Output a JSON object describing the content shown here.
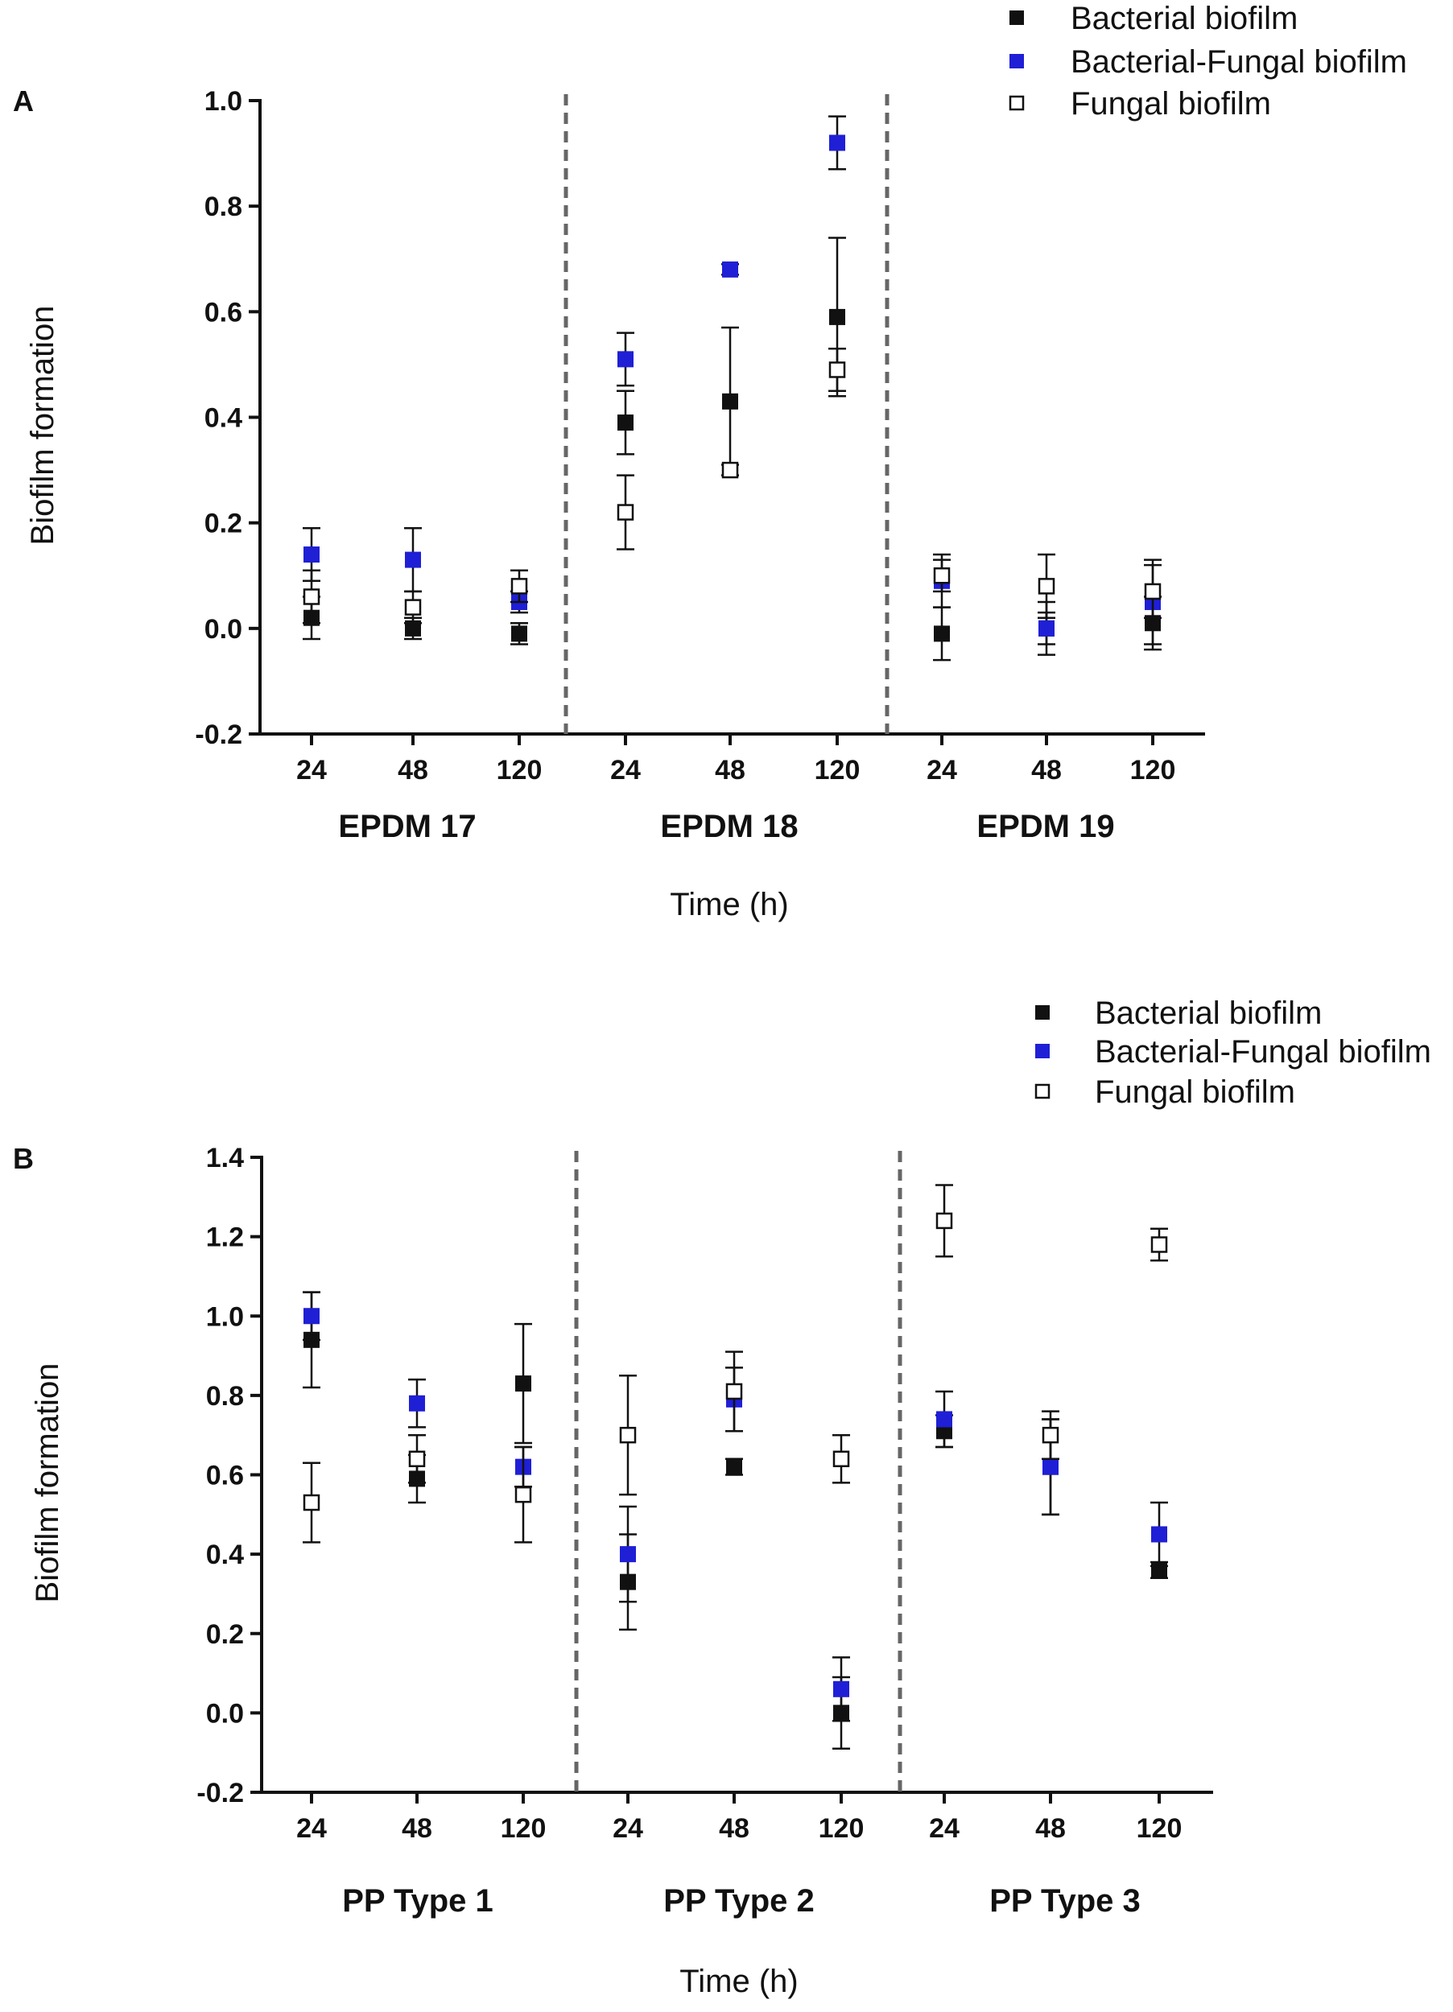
{
  "colors": {
    "bacterial": "#111111",
    "bacterial_fungal": "#1f1fd6",
    "fungal_fill": "#ffffff",
    "divider": "#666666"
  },
  "chart_data": [
    {
      "type": "scatter",
      "panel_label": "A",
      "xlabel": "Time (h)",
      "ylabel": "Biofilm formation",
      "ylim": [
        -0.2,
        1.0
      ],
      "yticks": [
        "1.0",
        "0.8",
        "0.6",
        "0.4",
        "0.2",
        "0.0",
        "-0.2"
      ],
      "ytick_values": [
        1.0,
        0.8,
        0.6,
        0.4,
        0.2,
        0.0,
        -0.2
      ],
      "grid": false,
      "legend_position": "top-right",
      "groups": [
        {
          "name": "EPDM 17",
          "times": [
            "24",
            "48",
            "120"
          ]
        },
        {
          "name": "EPDM 18",
          "times": [
            "24",
            "48",
            "120"
          ]
        },
        {
          "name": "EPDM 19",
          "times": [
            "24",
            "48",
            "120"
          ]
        }
      ],
      "series": [
        {
          "name": "Bacterial biofilm",
          "marker": "filled-square",
          "values": [
            0.02,
            0.0,
            -0.01,
            0.39,
            0.43,
            0.59,
            -0.01,
            0.0,
            0.01
          ],
          "errors": [
            0.04,
            0.02,
            0.02,
            0.06,
            0.14,
            0.15,
            0.05,
            0.05,
            0.05
          ]
        },
        {
          "name": "Bacterial-Fungal biofilm",
          "marker": "blue-square",
          "values": [
            0.14,
            0.13,
            0.05,
            0.51,
            0.68,
            0.92,
            0.09,
            0.0,
            0.05
          ],
          "errors": [
            0.05,
            0.06,
            0.02,
            0.05,
            0.01,
            0.05,
            0.05,
            0.03,
            0.08
          ]
        },
        {
          "name": "Fungal biofilm",
          "marker": "open-square",
          "values": [
            0.06,
            0.04,
            0.08,
            0.22,
            0.3,
            0.49,
            0.1,
            0.08,
            0.07
          ],
          "errors": [
            0.05,
            0.03,
            0.03,
            0.07,
            0.01,
            0.04,
            0.03,
            0.06,
            0.05
          ]
        }
      ]
    },
    {
      "type": "scatter",
      "panel_label": "B",
      "xlabel": "Time (h)",
      "ylabel": "Biofilm formation",
      "ylim": [
        -0.2,
        1.4
      ],
      "yticks": [
        "1.4",
        "1.2",
        "1.0",
        "0.8",
        "0.6",
        "0.4",
        "0.2",
        "0.0",
        "-0.2"
      ],
      "ytick_values": [
        1.4,
        1.2,
        1.0,
        0.8,
        0.6,
        0.4,
        0.2,
        0.0,
        -0.2
      ],
      "grid": false,
      "legend_position": "top-right",
      "groups": [
        {
          "name": "PP Type 1",
          "times": [
            "24",
            "48",
            "120"
          ]
        },
        {
          "name": "PP Type 2",
          "times": [
            "24",
            "48",
            "120"
          ]
        },
        {
          "name": "PP Type 3",
          "times": [
            "24",
            "48",
            "120"
          ]
        }
      ],
      "series": [
        {
          "name": "Bacterial biofilm",
          "marker": "filled-square",
          "values": [
            0.94,
            0.59,
            0.83,
            0.33,
            0.62,
            0.0,
            0.71,
            0.62,
            0.36
          ],
          "errors": [
            0.12,
            0.06,
            0.15,
            0.12,
            0.02,
            0.09,
            0.04,
            0.12,
            0.02
          ]
        },
        {
          "name": "Bacterial-Fungal biofilm",
          "marker": "blue-square",
          "values": [
            1.0,
            0.78,
            0.62,
            0.4,
            0.79,
            0.06,
            0.74,
            0.62,
            0.45
          ],
          "errors": [
            0.06,
            0.06,
            0.05,
            0.12,
            0.08,
            0.08,
            0.07,
            0.12,
            0.08
          ]
        },
        {
          "name": "Fungal biofilm",
          "marker": "open-square",
          "values": [
            0.53,
            0.64,
            0.55,
            0.7,
            0.81,
            0.64,
            1.24,
            0.7,
            1.18
          ],
          "errors": [
            0.1,
            0.06,
            0.12,
            0.15,
            0.1,
            0.06,
            0.09,
            0.06,
            0.04
          ]
        }
      ]
    }
  ]
}
